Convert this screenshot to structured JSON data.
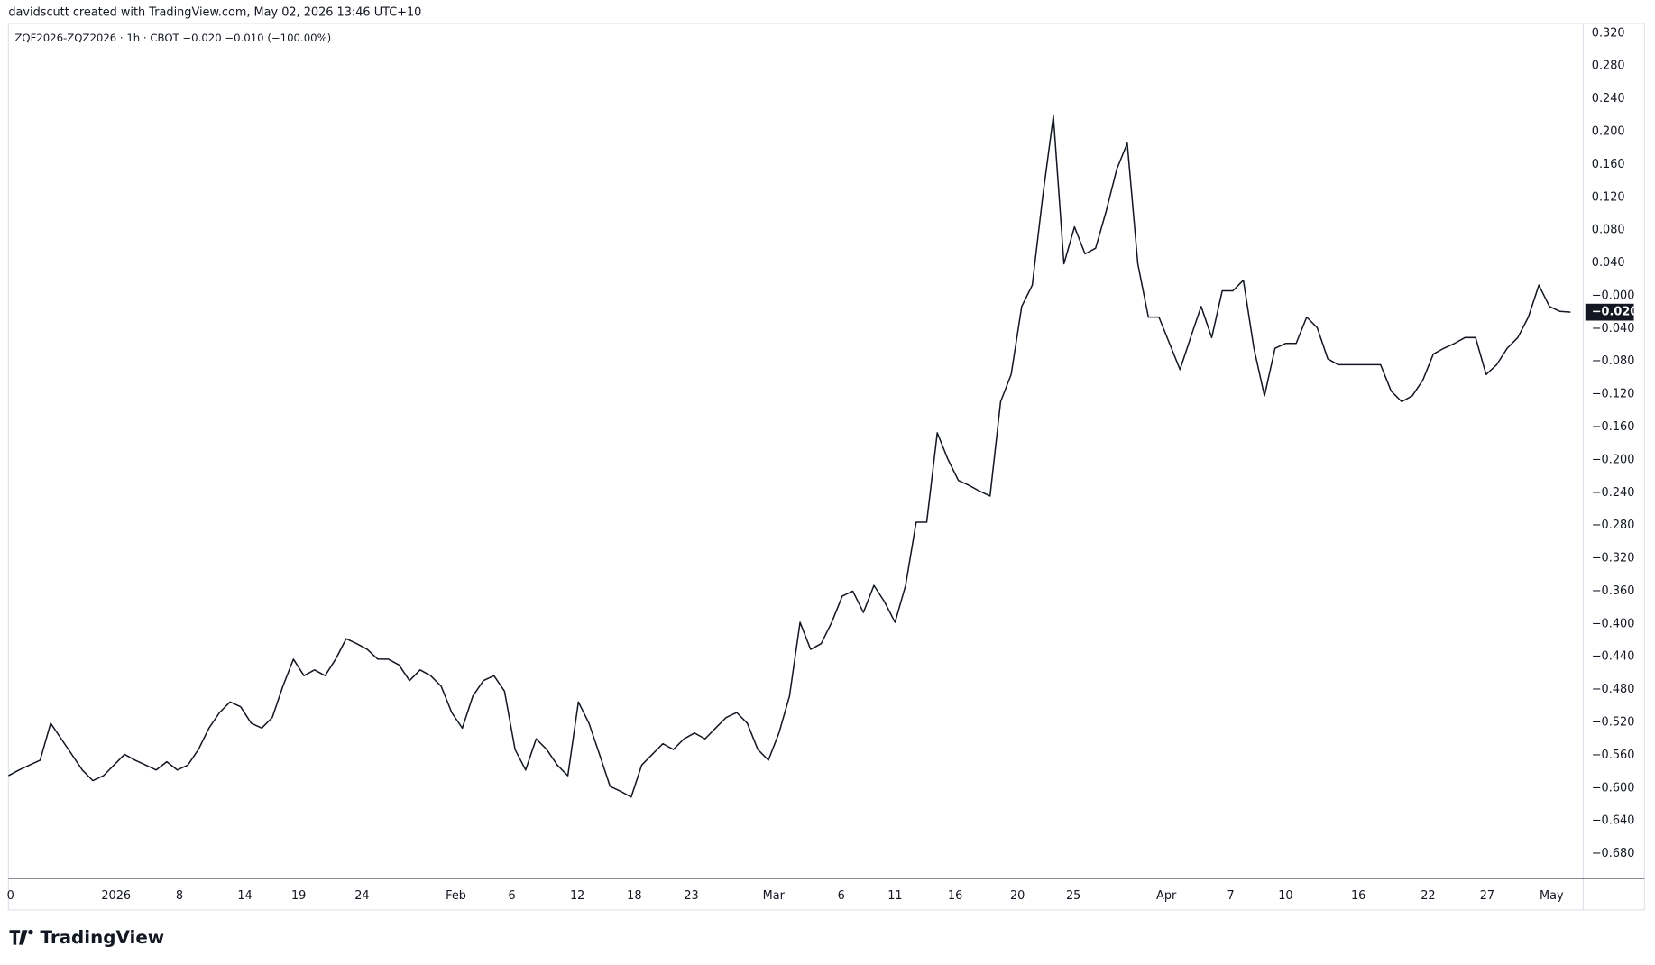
{
  "header": {
    "credit": "davidscutt created with TradingView.com, May 02, 2026 13:46 UTC+10",
    "logo": "TradingView"
  },
  "chart_data": {
    "type": "line",
    "legend_text": "ZQF2026-ZQZ2026 · 1h · CBOT  −0.020  −0.010 (−100.00%)",
    "color": "#131722",
    "last_value_label": "−0.020",
    "series": [
      {
        "name": "ZQF2026-ZQZ2026",
        "values": [
          -0.585,
          -0.578,
          -0.572,
          -0.566,
          -0.521,
          -0.54,
          -0.559,
          -0.578,
          -0.591,
          -0.585,
          -0.572,
          -0.559,
          -0.566,
          -0.572,
          -0.578,
          -0.568,
          -0.578,
          -0.572,
          -0.553,
          -0.527,
          -0.508,
          -0.495,
          -0.501,
          -0.521,
          -0.527,
          -0.514,
          -0.476,
          -0.443,
          -0.463,
          -0.456,
          -0.463,
          -0.443,
          -0.418,
          -0.424,
          -0.431,
          -0.443,
          -0.443,
          -0.45,
          -0.469,
          -0.456,
          -0.463,
          -0.476,
          -0.508,
          -0.527,
          -0.488,
          -0.469,
          -0.463,
          -0.482,
          -0.553,
          -0.578,
          -0.54,
          -0.553,
          -0.572,
          -0.585,
          -0.495,
          -0.521,
          -0.559,
          -0.598,
          -0.604,
          -0.611,
          -0.572,
          -0.559,
          -0.546,
          -0.553,
          -0.54,
          -0.533,
          -0.54,
          -0.527,
          -0.514,
          -0.508,
          -0.521,
          -0.553,
          -0.566,
          -0.533,
          -0.488,
          -0.398,
          -0.431,
          -0.424,
          -0.398,
          -0.366,
          -0.36,
          -0.386,
          -0.353,
          -0.373,
          -0.398,
          -0.353,
          -0.276,
          -0.276,
          -0.167,
          -0.199,
          -0.225,
          -0.231,
          -0.238,
          -0.244,
          -0.129,
          -0.096,
          -0.013,
          0.013,
          0.122,
          0.219,
          0.039,
          0.084,
          0.051,
          0.058,
          0.103,
          0.154,
          0.186,
          0.039,
          -0.026,
          -0.026,
          -0.058,
          -0.09,
          -0.051,
          -0.013,
          -0.051,
          0.006,
          0.006,
          0.019,
          -0.064,
          -0.122,
          -0.064,
          -0.058,
          -0.058,
          -0.026,
          -0.039,
          -0.077,
          -0.084,
          -0.084,
          -0.084,
          -0.084,
          -0.084,
          -0.116,
          -0.129,
          -0.122,
          -0.103,
          -0.071,
          -0.064,
          -0.058,
          -0.051,
          -0.051,
          -0.096,
          -0.084,
          -0.064,
          -0.051,
          -0.026,
          0.013,
          -0.013,
          -0.019,
          -0.02
        ]
      }
    ],
    "xlim": [
      0,
      149.2
    ],
    "xticks": [
      {
        "value": 0.2,
        "label": "0"
      },
      {
        "value": 10.2,
        "label": "2026"
      },
      {
        "value": 16.2,
        "label": "8"
      },
      {
        "value": 22.4,
        "label": "14"
      },
      {
        "value": 27.5,
        "label": "19"
      },
      {
        "value": 33.5,
        "label": "24"
      },
      {
        "value": 42.4,
        "label": "Feb"
      },
      {
        "value": 47.7,
        "label": "6"
      },
      {
        "value": 53.9,
        "label": "12"
      },
      {
        "value": 59.3,
        "label": "18"
      },
      {
        "value": 64.7,
        "label": "23"
      },
      {
        "value": 72.5,
        "label": "Mar"
      },
      {
        "value": 78.9,
        "label": "6"
      },
      {
        "value": 84,
        "label": "11"
      },
      {
        "value": 89.7,
        "label": "16"
      },
      {
        "value": 95.6,
        "label": "20"
      },
      {
        "value": 100.9,
        "label": "25"
      },
      {
        "value": 109.7,
        "label": "Apr"
      },
      {
        "value": 115.8,
        "label": "7"
      },
      {
        "value": 121,
        "label": "10"
      },
      {
        "value": 127.9,
        "label": "16"
      },
      {
        "value": 134.5,
        "label": "22"
      },
      {
        "value": 140.1,
        "label": "27"
      },
      {
        "value": 146.2,
        "label": "May"
      }
    ],
    "ylim": [
      -0.71,
      0.332
    ],
    "yticks": [
      {
        "value": 0.32,
        "label": "0.320"
      },
      {
        "value": 0.28,
        "label": "0.280"
      },
      {
        "value": 0.24,
        "label": "0.240"
      },
      {
        "value": 0.2,
        "label": "0.200"
      },
      {
        "value": 0.16,
        "label": "0.160"
      },
      {
        "value": 0.12,
        "label": "0.120"
      },
      {
        "value": 0.08,
        "label": "0.080"
      },
      {
        "value": 0.04,
        "label": "0.040"
      },
      {
        "value": 0,
        "label": "−0.000"
      },
      {
        "value": -0.04,
        "label": "−0.040"
      },
      {
        "value": -0.08,
        "label": "−0.080"
      },
      {
        "value": -0.12,
        "label": "−0.120"
      },
      {
        "value": -0.16,
        "label": "−0.160"
      },
      {
        "value": -0.2,
        "label": "−0.200"
      },
      {
        "value": -0.24,
        "label": "−0.240"
      },
      {
        "value": -0.28,
        "label": "−0.280"
      },
      {
        "value": -0.32,
        "label": "−0.320"
      },
      {
        "value": -0.36,
        "label": "−0.360"
      },
      {
        "value": -0.4,
        "label": "−0.400"
      },
      {
        "value": -0.44,
        "label": "−0.440"
      },
      {
        "value": -0.48,
        "label": "−0.480"
      },
      {
        "value": -0.52,
        "label": "−0.520"
      },
      {
        "value": -0.56,
        "label": "−0.560"
      },
      {
        "value": -0.6,
        "label": "−0.600"
      },
      {
        "value": -0.64,
        "label": "−0.640"
      },
      {
        "value": -0.68,
        "label": "−0.680"
      }
    ]
  }
}
